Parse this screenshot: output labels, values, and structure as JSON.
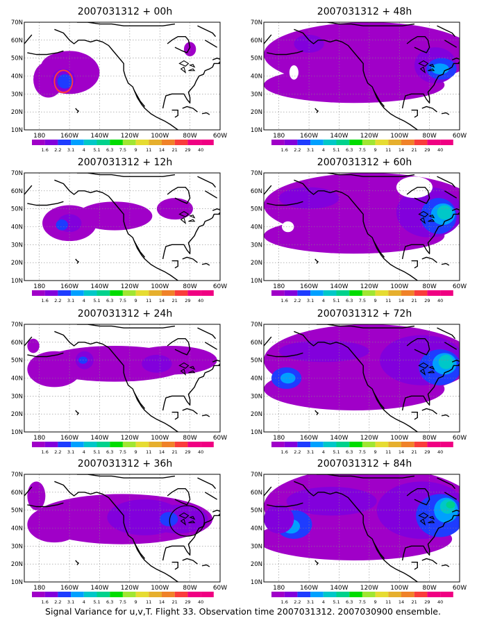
{
  "panels": [
    {
      "title": "2007031312 + 00h",
      "marker": {
        "color": "#ff3b3b",
        "label": "red-circle"
      }
    },
    {
      "title": "2007031312 + 12h"
    },
    {
      "title": "2007031312 + 24h"
    },
    {
      "title": "2007031312 + 36h",
      "marker": {
        "color": "#000000",
        "label": "black-circle"
      }
    },
    {
      "title": "2007031312 + 48h"
    },
    {
      "title": "2007031312 + 60h"
    },
    {
      "title": "2007031312 + 72h"
    },
    {
      "title": "2007031312 + 84h"
    }
  ],
  "axes": {
    "lat_labels": [
      "70N",
      "60N",
      "50N",
      "40N",
      "30N",
      "20N",
      "10N"
    ],
    "lon_labels": [
      "180",
      "160W",
      "140W",
      "120W",
      "100W",
      "80W",
      "60W"
    ]
  },
  "colorbar": {
    "labels": [
      "1.6",
      "2.2",
      "3.1",
      "4",
      "5.1",
      "6.3",
      "7.5",
      "9",
      "11",
      "14",
      "21",
      "29",
      "40"
    ],
    "colors": [
      "#a000c8",
      "#8200dc",
      "#1e3cff",
      "#00a0ff",
      "#00c8c8",
      "#00d28c",
      "#00dc00",
      "#a0e632",
      "#e6dc32",
      "#e6af2d",
      "#f08228",
      "#fa3c3c",
      "#f00082"
    ]
  },
  "footer": "Signal Variance for u,v,T. Flight 33. Observation time 2007031312. 2007030900 ensemble."
}
